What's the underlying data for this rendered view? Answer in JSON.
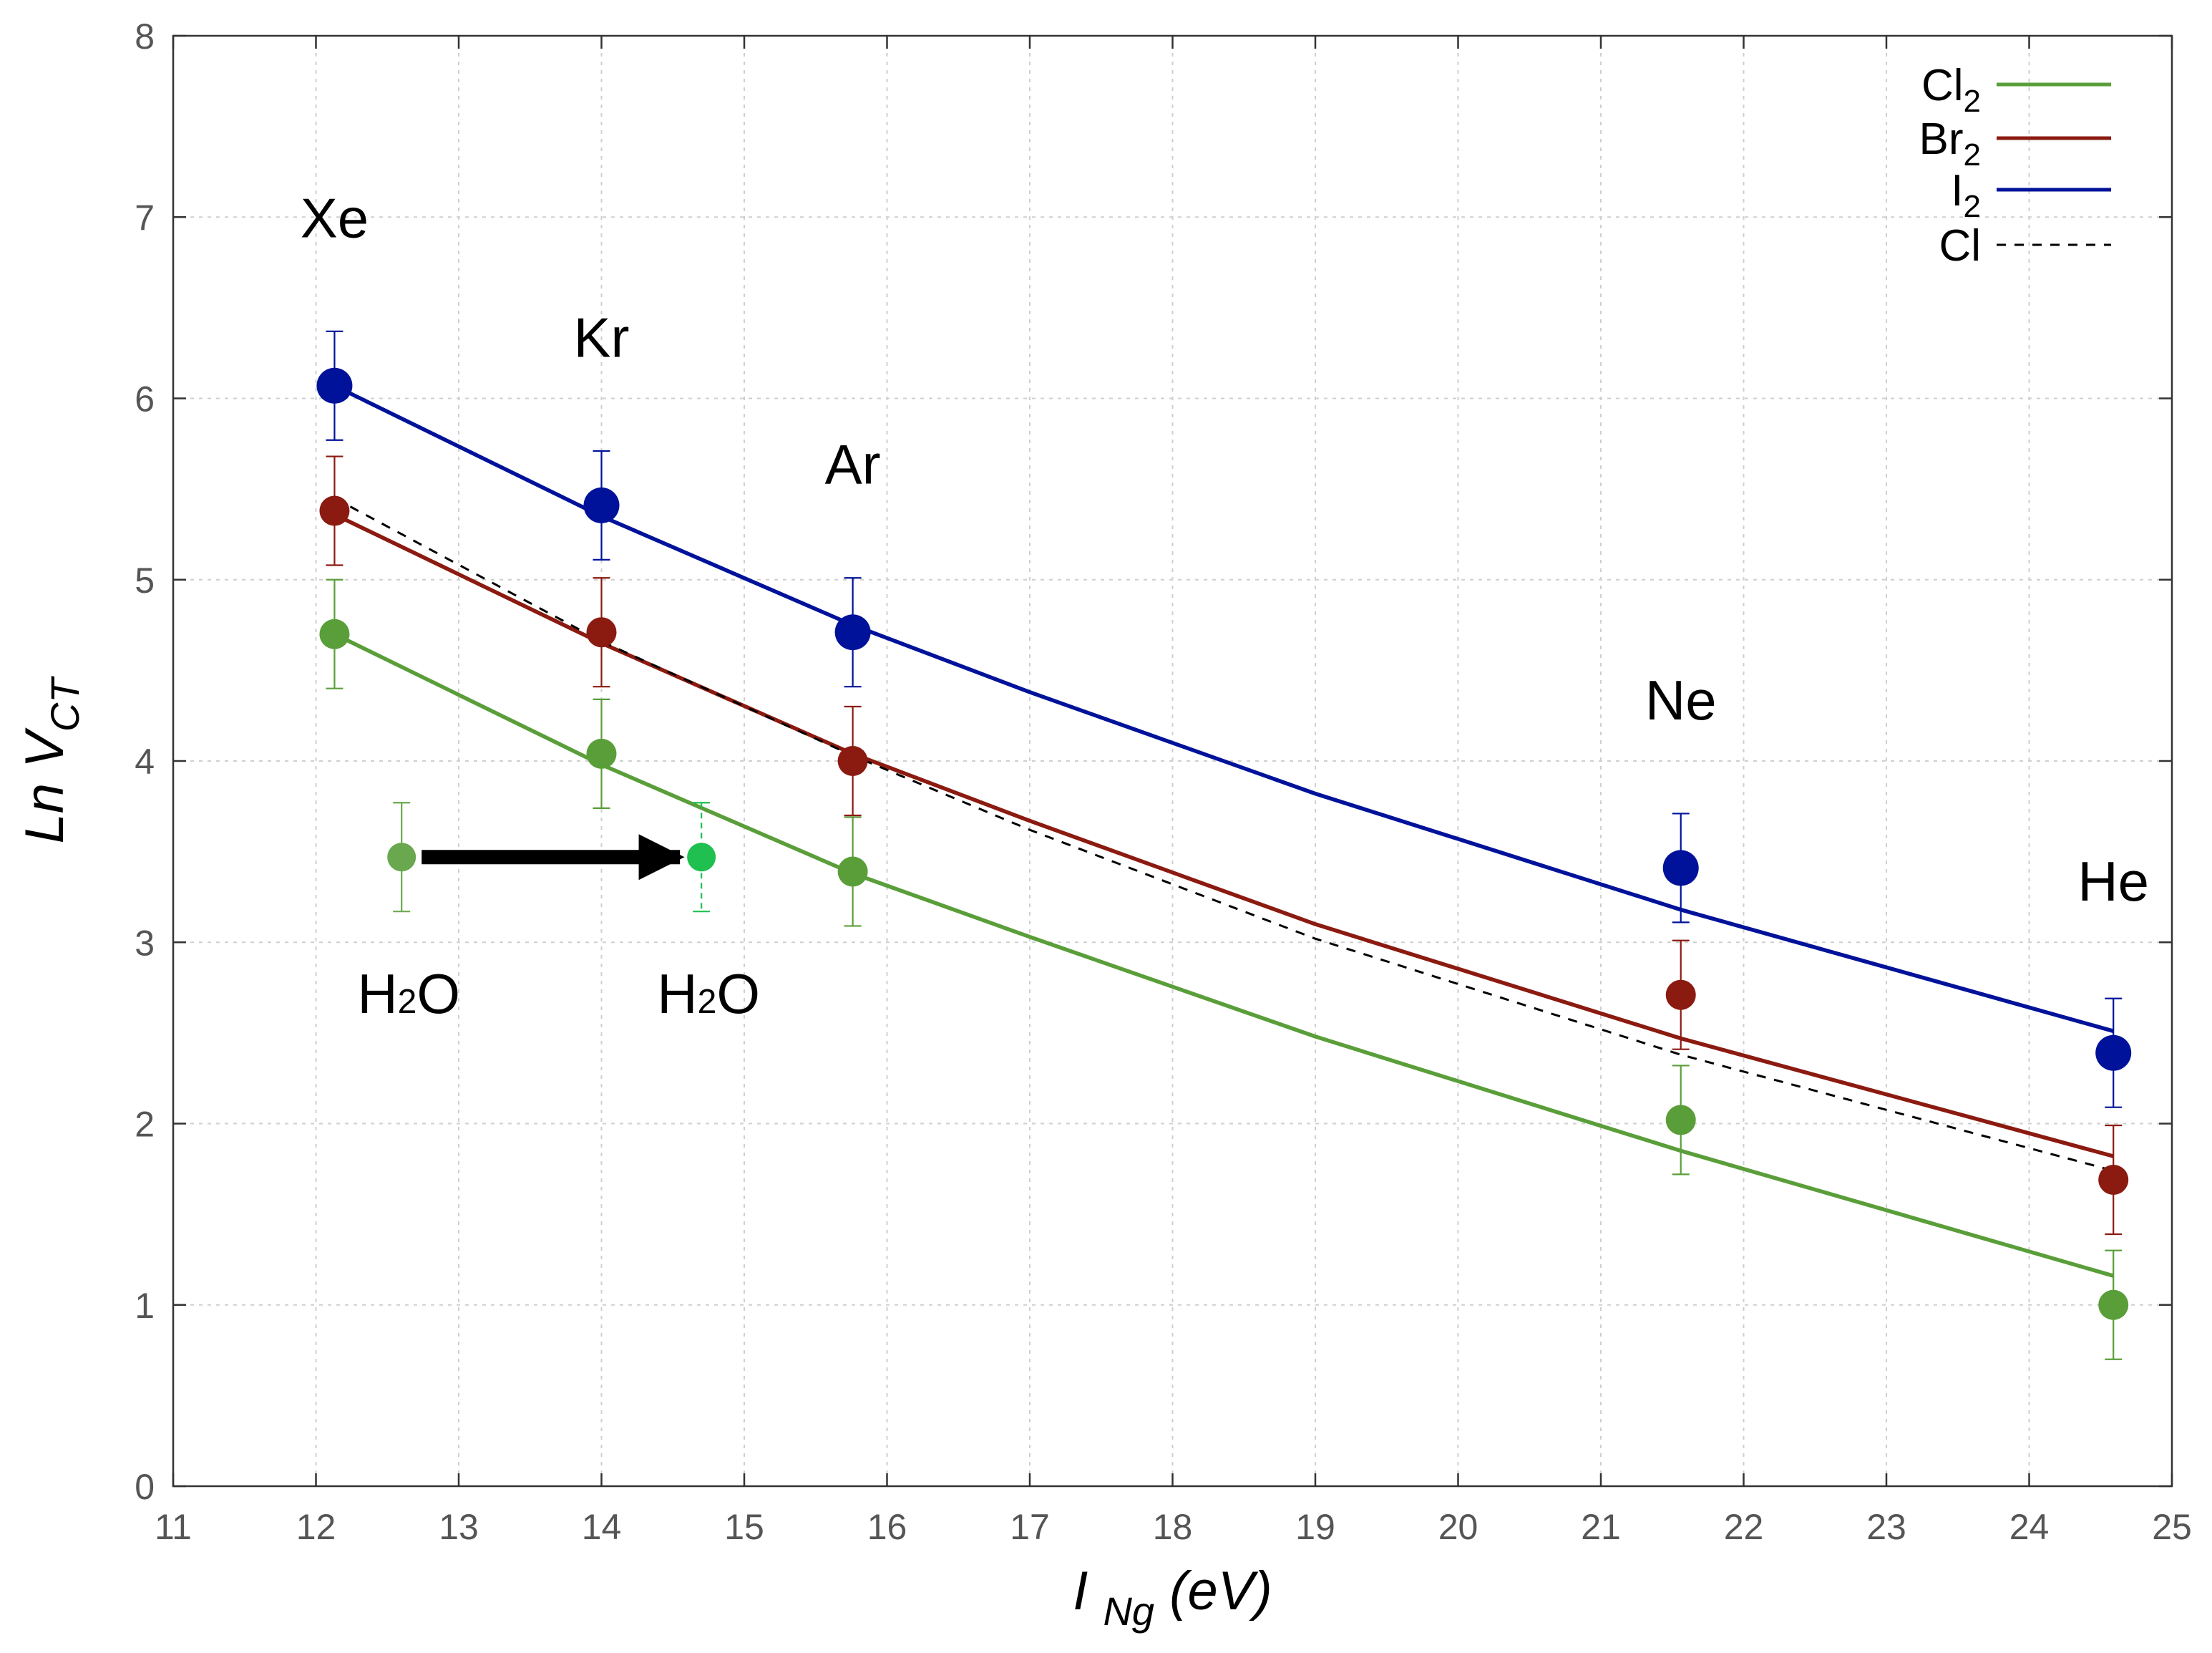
{
  "chart_data": {
    "type": "scatter",
    "title": "",
    "xlabel": {
      "main": "I",
      "sub": "Ng",
      "unit": "(eV)"
    },
    "ylabel": {
      "main": "Ln V",
      "sub": "CT"
    },
    "xlim": [
      11,
      25
    ],
    "ylim": [
      0,
      8
    ],
    "x_ticks": [
      11,
      12,
      13,
      14,
      15,
      16,
      17,
      18,
      19,
      20,
      21,
      22,
      23,
      24,
      25
    ],
    "y_ticks": [
      0,
      1,
      2,
      3,
      4,
      5,
      6,
      7,
      8
    ],
    "grid": true,
    "legend_position": "top-right",
    "gases": [
      {
        "name": "Xe",
        "x": 12.13
      },
      {
        "name": "Kr",
        "x": 14.0
      },
      {
        "name": "Ar",
        "x": 15.76
      },
      {
        "name": "Ne",
        "x": 21.56
      },
      {
        "name": "He",
        "x": 24.59
      }
    ],
    "series": [
      {
        "name": "Cl",
        "sub": "2",
        "color": "#5a9e3a",
        "error": 0.3,
        "points": [
          4.7,
          4.04,
          3.39,
          2.02,
          1.0
        ],
        "fit": [
          [
            12.13,
            4.7
          ],
          [
            14.0,
            3.98
          ],
          [
            15.76,
            3.38
          ],
          [
            17.0,
            3.03
          ],
          [
            19.0,
            2.48
          ],
          [
            21.56,
            1.85
          ],
          [
            24.59,
            1.16
          ]
        ]
      },
      {
        "name": "Br",
        "sub": "2",
        "color": "#8b1a10",
        "error": 0.3,
        "points": [
          5.38,
          4.71,
          4.0,
          2.71,
          1.69
        ],
        "fit": [
          [
            12.13,
            5.36
          ],
          [
            14.0,
            4.65
          ],
          [
            15.76,
            4.04
          ],
          [
            17.0,
            3.67
          ],
          [
            19.0,
            3.1
          ],
          [
            21.56,
            2.47
          ],
          [
            24.59,
            1.82
          ]
        ]
      },
      {
        "name": "I",
        "sub": "2",
        "color": "#00129a",
        "error": 0.3,
        "points": [
          6.07,
          5.41,
          4.71,
          3.41,
          2.39
        ],
        "fit": [
          [
            12.13,
            6.07
          ],
          [
            14.0,
            5.35
          ],
          [
            15.76,
            4.75
          ],
          [
            17.0,
            4.38
          ],
          [
            19.0,
            3.82
          ],
          [
            21.56,
            3.18
          ],
          [
            24.59,
            2.51
          ]
        ]
      },
      {
        "name": "Cl",
        "sub": "",
        "color": "#000000",
        "dashed": true,
        "fit": [
          [
            12.13,
            5.45
          ],
          [
            14.0,
            4.66
          ],
          [
            15.76,
            4.03
          ],
          [
            17.0,
            3.62
          ],
          [
            19.0,
            3.02
          ],
          [
            21.56,
            2.38
          ],
          [
            24.59,
            1.74
          ]
        ]
      }
    ],
    "water": {
      "label_main": "H",
      "label_sub": "2",
      "label_tail": "O",
      "from": {
        "x": 12.6,
        "y": 3.47,
        "error": 0.3,
        "color": "#6aa84f"
      },
      "to": {
        "x": 14.7,
        "y": 3.47,
        "error": 0.3,
        "color": "#1fbf50"
      }
    }
  }
}
